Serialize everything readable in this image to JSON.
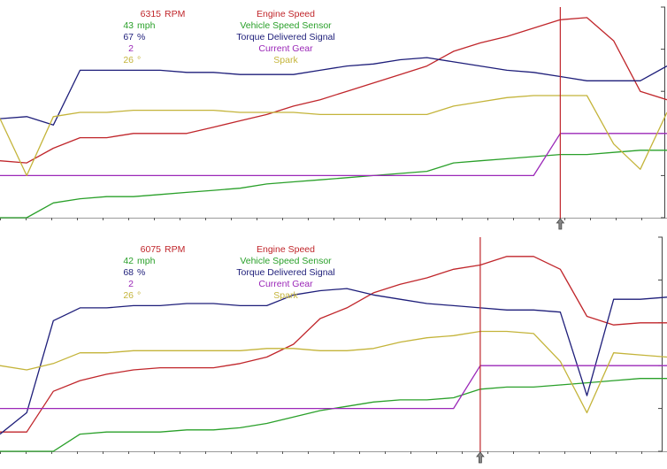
{
  "chart_data": [
    {
      "type": "line",
      "cursor_x": 21,
      "x": [
        0,
        1,
        2,
        3,
        4,
        5,
        6,
        7,
        8,
        9,
        10,
        11,
        12,
        13,
        14,
        15,
        16,
        17,
        18,
        19,
        20,
        21,
        22,
        23,
        24,
        25
      ],
      "readout": [
        {
          "value": "6315",
          "unit": "RPM",
          "name": "Engine Speed",
          "color": "#c0262b"
        },
        {
          "value": "43",
          "unit": "mph",
          "name": "Vehicle Speed Sensor",
          "color": "#2aa02a"
        },
        {
          "value": "67",
          "unit": "%",
          "name": "Torque Delivered Signal",
          "color": "#1e1e7a"
        },
        {
          "value": "2",
          "unit": "",
          "name": "Current Gear",
          "color": "#9b28b8"
        },
        {
          "value": "26",
          "unit": "°",
          "name": "Spark",
          "color": "#c4b43a"
        }
      ],
      "series": [
        {
          "color": "#c0262b",
          "values": [
            0.27,
            0.26,
            0.33,
            0.38,
            0.38,
            0.4,
            0.4,
            0.4,
            0.43,
            0.46,
            0.49,
            0.53,
            0.56,
            0.6,
            0.64,
            0.68,
            0.72,
            0.79,
            0.83,
            0.86,
            0.9,
            0.94,
            0.95,
            0.84,
            0.6,
            0.56
          ]
        },
        {
          "color": "#2aa02a",
          "values": [
            0.0,
            0.0,
            0.07,
            0.09,
            0.1,
            0.1,
            0.11,
            0.12,
            0.13,
            0.14,
            0.16,
            0.17,
            0.18,
            0.19,
            0.2,
            0.21,
            0.22,
            0.26,
            0.27,
            0.28,
            0.29,
            0.3,
            0.3,
            0.31,
            0.32,
            0.32
          ]
        },
        {
          "color": "#1e1e7a",
          "values": [
            0.47,
            0.48,
            0.44,
            0.7,
            0.7,
            0.7,
            0.7,
            0.69,
            0.69,
            0.68,
            0.68,
            0.68,
            0.7,
            0.72,
            0.73,
            0.75,
            0.76,
            0.74,
            0.72,
            0.7,
            0.69,
            0.67,
            0.65,
            0.65,
            0.65,
            0.72
          ]
        },
        {
          "color": "#9b28b8",
          "values": [
            0.2,
            0.2,
            0.2,
            0.2,
            0.2,
            0.2,
            0.2,
            0.2,
            0.2,
            0.2,
            0.2,
            0.2,
            0.2,
            0.2,
            0.2,
            0.2,
            0.2,
            0.2,
            0.2,
            0.2,
            0.2,
            0.4,
            0.4,
            0.4,
            0.4,
            0.4
          ]
        },
        {
          "color": "#c4b43a",
          "values": [
            0.47,
            0.2,
            0.48,
            0.5,
            0.5,
            0.51,
            0.51,
            0.51,
            0.51,
            0.5,
            0.5,
            0.5,
            0.49,
            0.49,
            0.49,
            0.49,
            0.49,
            0.53,
            0.55,
            0.57,
            0.58,
            0.58,
            0.58,
            0.35,
            0.23,
            0.5
          ]
        }
      ]
    },
    {
      "type": "line",
      "cursor_x": 18,
      "x": [
        0,
        1,
        2,
        3,
        4,
        5,
        6,
        7,
        8,
        9,
        10,
        11,
        12,
        13,
        14,
        15,
        16,
        17,
        18,
        19,
        20,
        21,
        22,
        23,
        24,
        25
      ],
      "readout": [
        {
          "value": "6075",
          "unit": "RPM",
          "name": "Engine Speed",
          "color": "#c0262b"
        },
        {
          "value": "42",
          "unit": "mph",
          "name": "Vehicle Speed Sensor",
          "color": "#2aa02a"
        },
        {
          "value": "68",
          "unit": "%",
          "name": "Torque Delivered Signal",
          "color": "#1e1e7a"
        },
        {
          "value": "2",
          "unit": "",
          "name": "Current Gear",
          "color": "#9b28b8"
        },
        {
          "value": "26",
          "unit": "°",
          "name": "Spark",
          "color": "#c4b43a"
        }
      ],
      "series": [
        {
          "color": "#c0262b",
          "values": [
            0.09,
            0.09,
            0.28,
            0.33,
            0.36,
            0.38,
            0.39,
            0.39,
            0.39,
            0.41,
            0.44,
            0.5,
            0.62,
            0.67,
            0.74,
            0.78,
            0.81,
            0.85,
            0.87,
            0.91,
            0.91,
            0.85,
            0.63,
            0.59,
            0.6,
            0.6
          ]
        },
        {
          "color": "#2aa02a",
          "values": [
            0.0,
            0.0,
            0.0,
            0.08,
            0.09,
            0.09,
            0.09,
            0.1,
            0.1,
            0.11,
            0.13,
            0.16,
            0.19,
            0.21,
            0.23,
            0.24,
            0.24,
            0.25,
            0.29,
            0.3,
            0.3,
            0.31,
            0.32,
            0.33,
            0.34,
            0.34
          ]
        },
        {
          "color": "#1e1e7a",
          "values": [
            0.08,
            0.18,
            0.61,
            0.67,
            0.67,
            0.68,
            0.68,
            0.69,
            0.69,
            0.68,
            0.68,
            0.73,
            0.75,
            0.76,
            0.73,
            0.71,
            0.69,
            0.68,
            0.67,
            0.66,
            0.66,
            0.65,
            0.26,
            0.71,
            0.71,
            0.72
          ]
        },
        {
          "color": "#9b28b8",
          "values": [
            0.2,
            0.2,
            0.2,
            0.2,
            0.2,
            0.2,
            0.2,
            0.2,
            0.2,
            0.2,
            0.2,
            0.2,
            0.2,
            0.2,
            0.2,
            0.2,
            0.2,
            0.2,
            0.4,
            0.4,
            0.4,
            0.4,
            0.4,
            0.4,
            0.4,
            0.4
          ]
        },
        {
          "color": "#c4b43a",
          "values": [
            0.4,
            0.38,
            0.41,
            0.46,
            0.46,
            0.47,
            0.47,
            0.47,
            0.47,
            0.47,
            0.48,
            0.48,
            0.47,
            0.47,
            0.48,
            0.51,
            0.53,
            0.54,
            0.56,
            0.56,
            0.55,
            0.42,
            0.18,
            0.46,
            0.45,
            0.44
          ]
        }
      ]
    }
  ]
}
